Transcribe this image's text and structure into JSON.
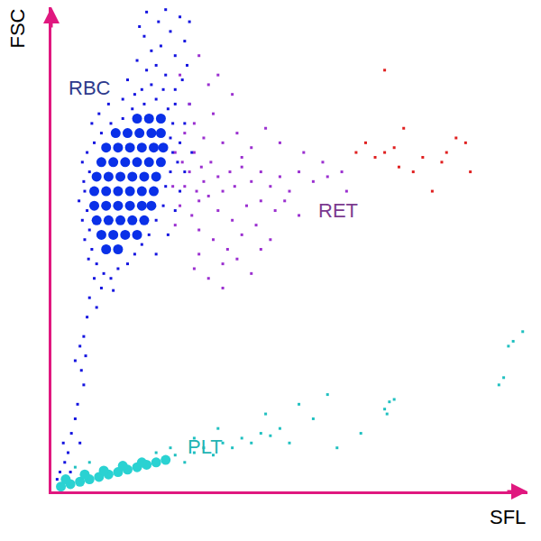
{
  "chart_data": {
    "type": "scatter",
    "x_label": "SFL",
    "y_label": "FSC",
    "xlim": [
      0,
      100
    ],
    "ylim": [
      0,
      100
    ],
    "xticks": [],
    "yticks": [],
    "grid": false,
    "tick_labels": false,
    "annotations": [
      {
        "text": "RBC",
        "x": 8.1,
        "y": 83.3,
        "color": "#2e3a8c"
      },
      {
        "text": "RET",
        "x": 60.2,
        "y": 58,
        "color": "#7b3a8f"
      },
      {
        "text": "PLT",
        "x": 32.2,
        "y": 9.3,
        "color": "#22b4b4"
      }
    ],
    "series": [
      {
        "color": "#1414e0",
        "marker": "square",
        "x": [
          7.5,
          8,
          7,
          7.5,
          8,
          8.5,
          9.5,
          11,
          12.5,
          14,
          16,
          17.5,
          19,
          20.5,
          22,
          23.5,
          24,
          25,
          25.5,
          25,
          25.5,
          24.5,
          22,
          19.5,
          17,
          15,
          12.5,
          10.5,
          9,
          6.8,
          6.5,
          7.8,
          9,
          10.5,
          13,
          26.5,
          27,
          26,
          23.5,
          21,
          19,
          17.5,
          24,
          22,
          20,
          26,
          23,
          21,
          25,
          27,
          29,
          19.5,
          22.5,
          28,
          27.5,
          28.5,
          26,
          16,
          15,
          18,
          20,
          24,
          18.5,
          10,
          8.5,
          12,
          6.5,
          28,
          29,
          28,
          29.5,
          27,
          26,
          5.8,
          7,
          24.5,
          22,
          8,
          9.5,
          7.5,
          6.8,
          7.2,
          6.3,
          6.8,
          5.5,
          5,
          4.2,
          3.5,
          2.8,
          1.8,
          1.2,
          2.5,
          4,
          6,
          5,
          6
        ],
        "y": [
          70,
          66,
          62,
          58,
          54,
          50,
          47,
          45,
          44,
          46,
          47,
          49,
          51,
          53,
          56,
          59,
          63,
          66,
          70,
          73,
          76,
          79,
          81,
          80,
          79,
          77,
          76,
          74,
          72,
          64,
          56,
          48,
          44,
          42,
          41.5,
          68,
          72,
          80,
          83,
          84,
          83,
          82,
          86,
          88,
          87,
          90,
          92,
          91,
          95,
          98,
          97,
          94,
          97,
          93,
          85,
          88,
          83,
          85,
          81,
          89,
          99,
          99.5,
          96,
          78,
          76,
          80,
          68,
          76,
          80,
          66,
          70,
          62,
          58,
          60,
          52,
          53,
          49,
          40,
          38,
          36,
          32,
          28,
          25,
          22,
          18,
          15,
          12,
          8,
          6,
          4,
          2.5,
          10,
          4,
          10,
          27,
          30
        ]
      },
      {
        "color": "#0a30e8",
        "marker": "circle",
        "x": [
          18,
          20.5,
          23,
          13.5,
          16,
          18.5,
          21,
          23,
          11.5,
          14,
          16.5,
          19,
          21.5,
          23.5,
          10.5,
          13,
          15.5,
          18,
          20.5,
          23,
          9.5,
          12,
          14.5,
          17,
          19.5,
          22,
          9,
          11.5,
          14,
          16.5,
          19,
          21.5,
          9,
          11.5,
          14,
          16.5,
          19,
          21,
          9.5,
          12,
          14.5,
          17,
          19.5,
          10.5,
          13,
          15.5,
          18,
          11.5,
          14
        ],
        "y": [
          77,
          77,
          77,
          74,
          74,
          74,
          74,
          74,
          71,
          71,
          71,
          71,
          71,
          71,
          68,
          68,
          68,
          68,
          68,
          68,
          65,
          65,
          65,
          65,
          65,
          65,
          62,
          62,
          62,
          62,
          62,
          62,
          59,
          59,
          59,
          59,
          59,
          59,
          56,
          56,
          56,
          56,
          56,
          53,
          53,
          53,
          53,
          50,
          50
        ]
      },
      {
        "color": "#9b30d0",
        "marker": "square",
        "x": [
          26,
          27.5,
          29,
          30,
          31.5,
          28,
          30.5,
          32,
          33.5,
          35,
          27,
          29.5,
          31,
          33,
          36,
          37.5,
          38.5,
          40,
          42,
          44,
          46,
          48,
          50,
          52,
          55,
          58,
          35,
          38,
          41,
          44,
          47,
          31,
          34,
          37,
          40,
          43,
          46,
          52,
          28,
          30,
          32,
          34,
          36,
          39,
          42,
          45,
          48,
          53,
          57,
          61,
          33,
          31,
          29,
          38,
          27,
          40,
          30,
          33,
          36,
          39,
          42,
          36,
          49,
          44,
          62,
          31,
          25.5,
          26,
          35
        ],
        "y": [
          70,
          68,
          66,
          70,
          67,
          63,
          62,
          64,
          68,
          65,
          59,
          57,
          60,
          61,
          62,
          66,
          63,
          67,
          64,
          66,
          63,
          65,
          62,
          66,
          64,
          65,
          58,
          56,
          59,
          60,
          58,
          54,
          52,
          50,
          53,
          55,
          52,
          57,
          74,
          76,
          73,
          78,
          72,
          74,
          71,
          75,
          72,
          70,
          68,
          66,
          84,
          90,
          80,
          82,
          86,
          69,
          46,
          44,
          47,
          48,
          45,
          42,
          60,
          50,
          62,
          49,
          63,
          55,
          86
        ]
      },
      {
        "color": "#e02020",
        "marker": "square",
        "x": [
          64,
          66,
          68,
          70,
          72,
          73,
          76,
          78,
          82,
          85,
          87,
          88,
          80,
          74,
          70,
          83
        ],
        "y": [
          70,
          72,
          69,
          70,
          71,
          67,
          66,
          69,
          68,
          73,
          72,
          66,
          62,
          75,
          87,
          70
        ]
      },
      {
        "color": "#20c0c0",
        "marker": "square",
        "x": [
          26,
          28,
          30,
          32,
          34,
          36,
          38,
          40,
          42,
          44,
          46,
          48,
          35,
          30,
          25,
          22,
          50,
          55,
          60,
          70,
          71,
          70.5,
          72,
          94,
          95,
          96,
          97,
          99,
          58,
          8,
          5,
          45,
          52,
          65
        ],
        "y": [
          7.5,
          6,
          8,
          9,
          7.5,
          10,
          9,
          11,
          10,
          12,
          11.5,
          13,
          13,
          11,
          9,
          8,
          10,
          15,
          9,
          17,
          18.5,
          16,
          19,
          22,
          23.5,
          30,
          31,
          33,
          20,
          6,
          5,
          16,
          18,
          12
        ]
      },
      {
        "color": "#2ad2d2",
        "marker": "circle",
        "x": [
          2,
          4,
          6,
          8,
          10,
          12,
          14,
          16,
          18,
          20,
          3,
          7,
          11,
          15,
          19,
          22,
          24
        ],
        "y": [
          1,
          1.5,
          2,
          2.5,
          3,
          3.5,
          4,
          4.5,
          5,
          5.5,
          2.5,
          3.5,
          4.3,
          5.3,
          6,
          6,
          6.5
        ]
      }
    ]
  }
}
